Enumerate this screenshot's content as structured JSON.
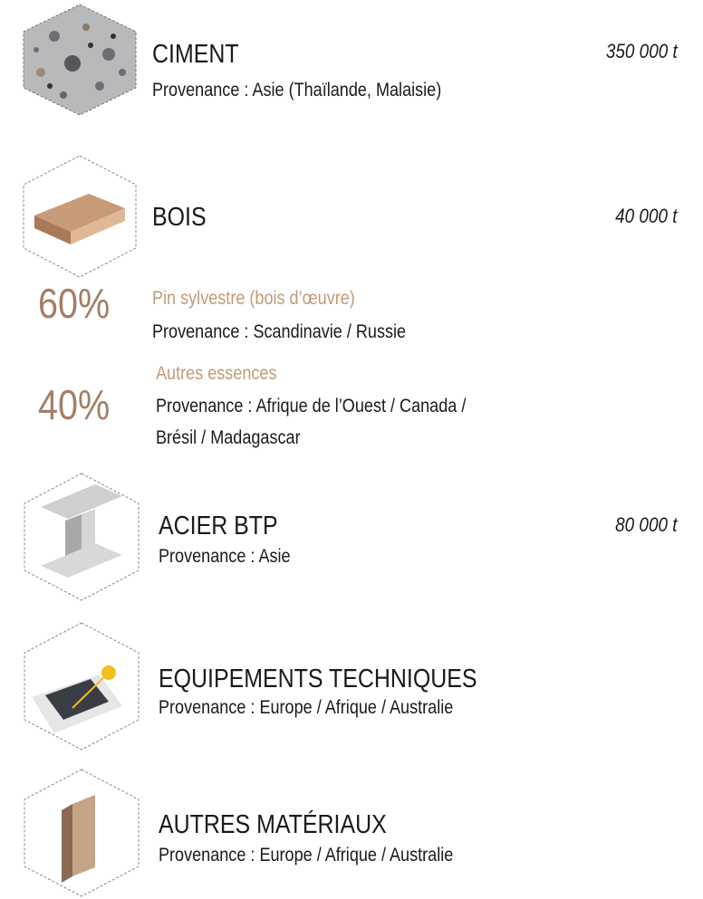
{
  "materials": [
    {
      "title": "CIMENT",
      "origin": "Provenance : Asie (Thaïlande, Malaisie)",
      "quantity": "350 000 t"
    },
    {
      "title": "BOIS",
      "quantity": "40 000 t",
      "breakdown": [
        {
          "share": "60%",
          "name": "Pin sylvestre (bois d’œuvre)",
          "origin": "Provenance : Scandinavie / Russie"
        },
        {
          "share": "40%",
          "name": "Autres essences",
          "origin": [
            "Provenance : Afrique de l’Ouest / Canada /",
            "Brésil / Madagascar"
          ]
        }
      ]
    },
    {
      "title": "ACIER BTP",
      "origin": "Provenance : Asie",
      "quantity": "80 000 t"
    },
    {
      "title": "EQUIPEMENTS TECHNIQUES",
      "origin": "Provenance : Europe / Afrique / Australie"
    },
    {
      "title": "AUTRES MATÉRIAUX",
      "origin": "Provenance : Europe / Afrique / Australie"
    }
  ]
}
